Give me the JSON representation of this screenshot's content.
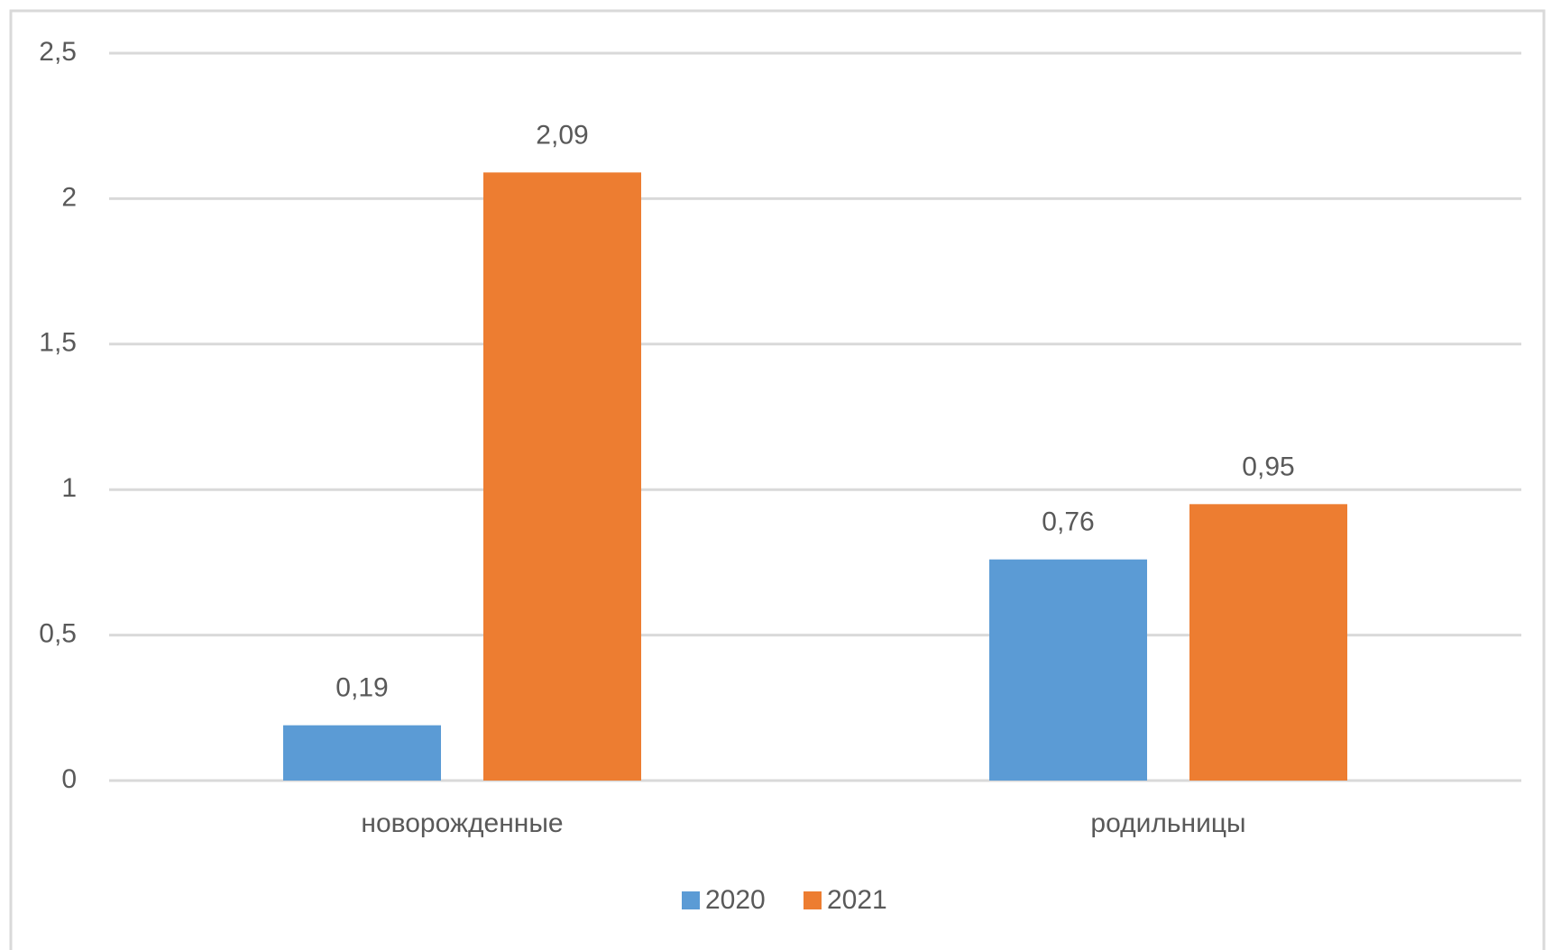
{
  "chart_data": {
    "type": "bar",
    "categories": [
      "новорожденные",
      "родильницы"
    ],
    "series": [
      {
        "name": "2020",
        "color": "#5b9bd5",
        "values": [
          0.19,
          0.76
        ],
        "value_labels": [
          "0,19",
          "0,76"
        ]
      },
      {
        "name": "2021",
        "color": "#ed7d31",
        "values": [
          2.09,
          0.95
        ],
        "value_labels": [
          "2,09",
          "0,95"
        ]
      }
    ],
    "ylim": [
      0,
      2.5
    ],
    "yticks": [
      0,
      {
        "value": 0.5,
        "label": "0,5"
      },
      1,
      {
        "value": 1.5,
        "label": "1,5"
      },
      2,
      {
        "value": 2.5,
        "label": "2,5"
      }
    ],
    "grid": true,
    "legend": "bottom"
  }
}
